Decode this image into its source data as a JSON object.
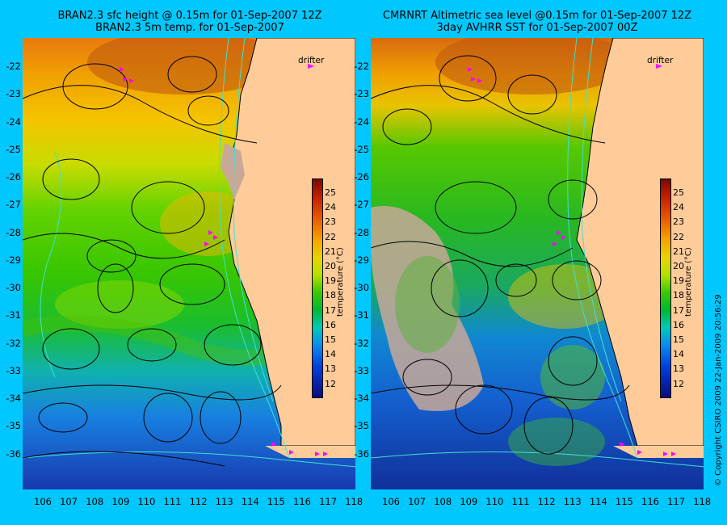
{
  "left_panel": {
    "title_line1": "BRAN2.3 sfc height @ 0.15m for 01-Sep-2007 12Z",
    "title_line2": "BRAN2.3 5m temp. for 01-Sep-2007"
  },
  "right_panel": {
    "title_line1": "CMRNRT Altimetric sea level  @0.15m  for 01-Sep-2007 12Z",
    "title_line2": "3day AVHRR SST for 01-Sep-2007 00Z"
  },
  "legend": {
    "drifter_label": "drifter"
  },
  "colorbar": {
    "label": "temperature (°C)",
    "ticks": [
      "25",
      "24",
      "23",
      "22",
      "21",
      "20",
      "19",
      "18",
      "17",
      "16",
      "15",
      "14",
      "13",
      "12"
    ]
  },
  "axes": {
    "lat_ticks": [
      "-22",
      "-23",
      "-24",
      "-25",
      "-26",
      "-27",
      "-28",
      "-29",
      "-30",
      "-31",
      "-32",
      "-33",
      "-34",
      "-35",
      "-36"
    ],
    "lon_ticks": [
      "106",
      "107",
      "108",
      "109",
      "110",
      "111",
      "112",
      "113",
      "114",
      "115",
      "116",
      "117",
      "118"
    ]
  },
  "copyright": "© Copyright CSIRO 2009  22-Jan-2009 20:56:29",
  "colors": {
    "background": "#00c8ff",
    "land": "#ffcc99",
    "drifter": "#ff00ff",
    "bathymetry": "#40e0d0"
  }
}
